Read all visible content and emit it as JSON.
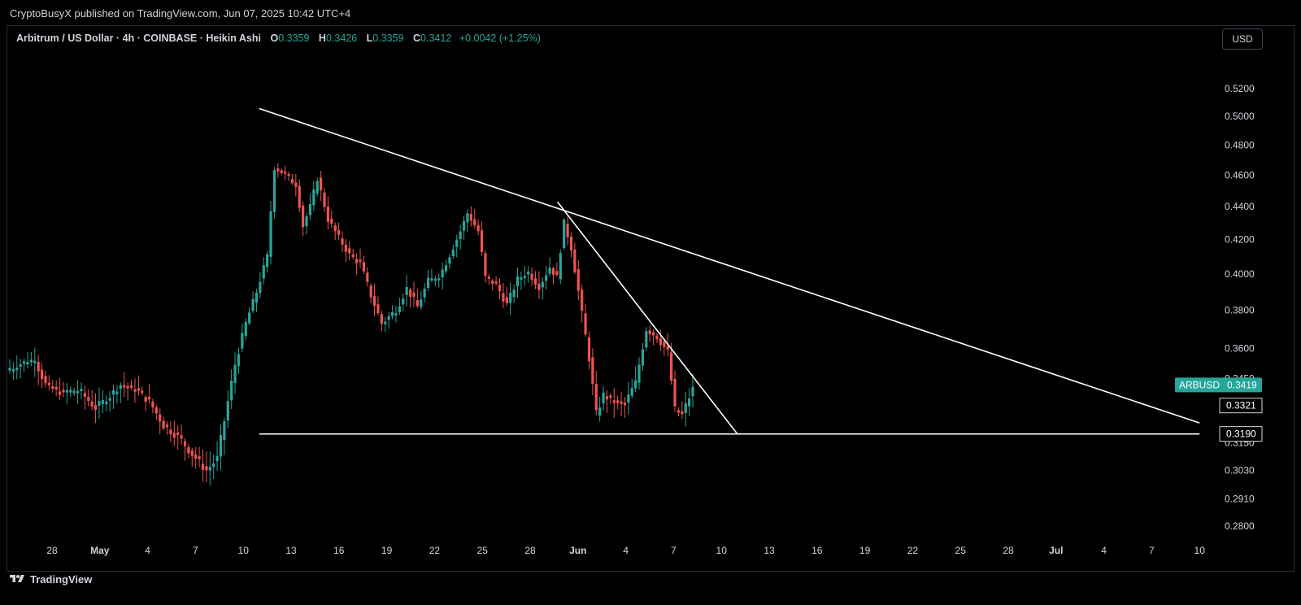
{
  "header": {
    "published": "CryptoBusyX published on TradingView.com, Jun 07, 2025 10:42 UTC+4"
  },
  "legend": {
    "symbol": "Arbitrum / US Dollar · 4h · COINBASE · Heikin Ashi",
    "open_label": "O",
    "open": "0.3359",
    "high_label": "H",
    "high": "0.3426",
    "low_label": "L",
    "low": "0.3359",
    "close_label": "C",
    "close": "0.3412",
    "change": "+0.0042 (+1.25%)"
  },
  "currency_button": "USD",
  "footer": {
    "brand": "TradingView"
  },
  "colors": {
    "up": "#26a69a",
    "down": "#ef5350",
    "background": "#000000",
    "trendline": "#ffffff",
    "price_badge": "#26a69a"
  },
  "chart_data": {
    "type": "candlestick",
    "style": "Heikin Ashi",
    "price_axis": {
      "ticks": [
        "0.5200",
        "0.5000",
        "0.4800",
        "0.4600",
        "0.4400",
        "0.4200",
        "0.4000",
        "0.3800",
        "0.3600",
        "0.3450",
        "0.3150",
        "0.3030",
        "0.2910",
        "0.2800"
      ],
      "scale": "log",
      "range": [
        0.275,
        0.54
      ]
    },
    "time_axis": {
      "ticks": [
        "28",
        "May",
        "4",
        "7",
        "10",
        "13",
        "16",
        "19",
        "22",
        "25",
        "28",
        "Jun",
        "4",
        "7",
        "10",
        "13",
        "16",
        "19",
        "22",
        "25",
        "28",
        "Jul",
        "4",
        "7",
        "10"
      ],
      "bold_ticks": [
        "May",
        "Jun",
        "Jul"
      ]
    },
    "price_badges": [
      {
        "label": "ARBUSD",
        "value": "0.3419",
        "price": 0.3419
      },
      {
        "label": "",
        "value": "0.3321",
        "price": 0.3321
      },
      {
        "label": "",
        "value": "0.3190",
        "price": 0.319
      }
    ],
    "anchors": [
      [
        0,
        0.349
      ],
      [
        3,
        0.352
      ],
      [
        7,
        0.354
      ],
      [
        10,
        0.342
      ],
      [
        15,
        0.338
      ],
      [
        20,
        0.338
      ],
      [
        24,
        0.331
      ],
      [
        27,
        0.335
      ],
      [
        31,
        0.342
      ],
      [
        35,
        0.34
      ],
      [
        39,
        0.334
      ],
      [
        43,
        0.323
      ],
      [
        47,
        0.318
      ],
      [
        51,
        0.31
      ],
      [
        55,
        0.303
      ],
      [
        58,
        0.308
      ],
      [
        60,
        0.325
      ],
      [
        63,
        0.352
      ],
      [
        66,
        0.373
      ],
      [
        69,
        0.39
      ],
      [
        72,
        0.41
      ],
      [
        74,
        0.465
      ],
      [
        76,
        0.462
      ],
      [
        78,
        0.458
      ],
      [
        80,
        0.454
      ],
      [
        82,
        0.428
      ],
      [
        84,
        0.44
      ],
      [
        86,
        0.458
      ],
      [
        89,
        0.432
      ],
      [
        92,
        0.421
      ],
      [
        95,
        0.411
      ],
      [
        98,
        0.406
      ],
      [
        101,
        0.388
      ],
      [
        104,
        0.373
      ],
      [
        108,
        0.38
      ],
      [
        111,
        0.392
      ],
      [
        114,
        0.382
      ],
      [
        117,
        0.396
      ],
      [
        120,
        0.398
      ],
      [
        123,
        0.411
      ],
      [
        126,
        0.425
      ],
      [
        128,
        0.436
      ],
      [
        131,
        0.425
      ],
      [
        133,
        0.398
      ],
      [
        136,
        0.394
      ],
      [
        139,
        0.383
      ],
      [
        142,
        0.397
      ],
      [
        145,
        0.401
      ],
      [
        148,
        0.393
      ],
      [
        151,
        0.404
      ],
      [
        153,
        0.398
      ],
      [
        155,
        0.43
      ],
      [
        157,
        0.415
      ],
      [
        160,
        0.378
      ],
      [
        162,
        0.355
      ],
      [
        164,
        0.328
      ],
      [
        166,
        0.337
      ],
      [
        169,
        0.334
      ],
      [
        172,
        0.333
      ],
      [
        175,
        0.343
      ],
      [
        178,
        0.37
      ],
      [
        181,
        0.366
      ],
      [
        184,
        0.358
      ],
      [
        186,
        0.33
      ],
      [
        188,
        0.328
      ],
      [
        191,
        0.34
      ]
    ],
    "candle_count": 192,
    "trendlines": [
      {
        "from": [
          "May 11",
          0.5055
        ],
        "to": [
          "Jul 10",
          0.324
        ]
      },
      {
        "from": [
          "May 30",
          0.443
        ],
        "to": [
          "Jun 11",
          0.319
        ]
      },
      {
        "from": [
          "May 11",
          0.319
        ],
        "to": [
          "Jul 10",
          0.319
        ]
      }
    ]
  }
}
